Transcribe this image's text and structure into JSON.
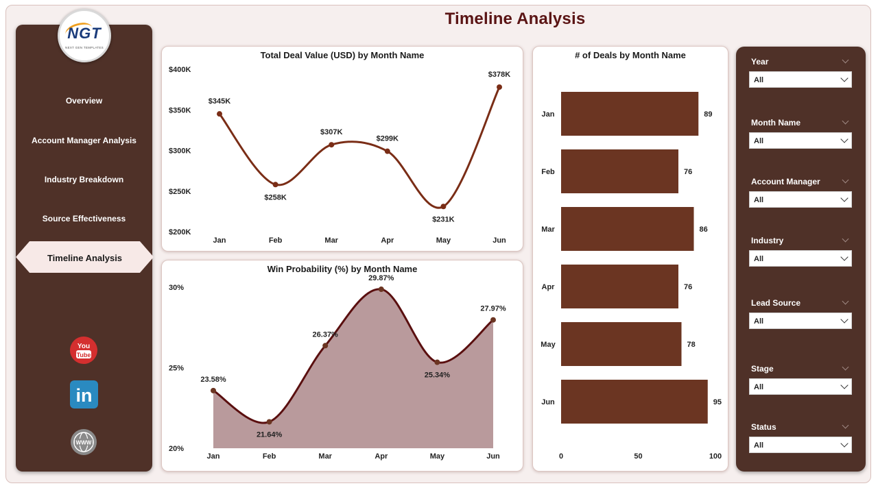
{
  "page_title": "Timeline Analysis",
  "logo": {
    "mark": "NGT",
    "subtitle": "NEXT GEN TEMPLATES"
  },
  "nav": {
    "items": [
      "Overview",
      "Account Manager Analysis",
      "Industry Breakdown",
      "Source Effectiveness",
      "Timeline Analysis"
    ],
    "active": "Timeline Analysis"
  },
  "social": [
    {
      "icon": "youtube-icon",
      "label": "You Tube",
      "color": "#d42f2f"
    },
    {
      "icon": "linkedin-icon",
      "label": "in",
      "color": "#2a8ac0"
    },
    {
      "icon": "globe-icon",
      "label": "WWW",
      "color": "#8a8a8a"
    }
  ],
  "filters": [
    {
      "label": "Year",
      "value": "All"
    },
    {
      "label": "Month Name",
      "value": "All"
    },
    {
      "label": "Account Manager",
      "value": "All"
    },
    {
      "label": "Industry",
      "value": "All"
    },
    {
      "label": "Lead Source",
      "value": "All"
    },
    {
      "label": "Stage",
      "value": "All"
    },
    {
      "label": "Status",
      "value": "All"
    }
  ],
  "colors": {
    "accent": "#6b3522",
    "line": "#7a2d16",
    "area_line": "#5a0f0f",
    "area_fill": "#b99a9c",
    "panel": "#4f3128"
  },
  "chart_data": [
    {
      "type": "line",
      "title": "Total Deal Value (USD) by Month Name",
      "categories": [
        "Jan",
        "Feb",
        "Mar",
        "Apr",
        "May",
        "Jun"
      ],
      "values": [
        345,
        258,
        307,
        299,
        231,
        378
      ],
      "data_labels": [
        "$345K",
        "$258K",
        "$307K",
        "$299K",
        "$231K",
        "$378K"
      ],
      "ylim": [
        200,
        400
      ],
      "yticks": [
        "$200K",
        "$250K",
        "$300K",
        "$350K",
        "$400K"
      ],
      "grid": false
    },
    {
      "type": "area",
      "title": "Win Probability (%) by Month Name",
      "categories": [
        "Jan",
        "Feb",
        "Mar",
        "Apr",
        "May",
        "Jun"
      ],
      "values": [
        23.58,
        21.64,
        26.37,
        29.87,
        25.34,
        27.97
      ],
      "data_labels": [
        "23.58%",
        "21.64%",
        "26.37%",
        "29.87%",
        "25.34%",
        "27.97%"
      ],
      "ylim": [
        20,
        30
      ],
      "yticks": [
        "20%",
        "25%",
        "30%"
      ],
      "grid": false
    },
    {
      "type": "bar",
      "orientation": "horizontal",
      "title": "# of Deals by Month Name",
      "categories": [
        "Jan",
        "Feb",
        "Mar",
        "Apr",
        "May",
        "Jun"
      ],
      "values": [
        89,
        76,
        86,
        76,
        78,
        95
      ],
      "xlim": [
        0,
        100
      ],
      "xticks": [
        "0",
        "50",
        "100"
      ],
      "grid": false
    }
  ]
}
